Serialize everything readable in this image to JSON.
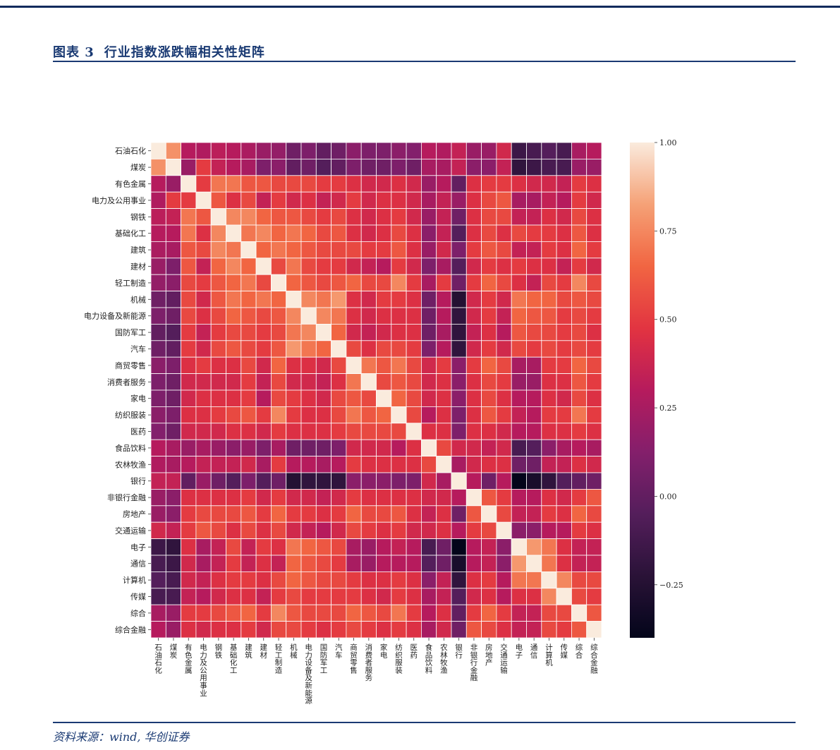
{
  "header": {
    "label": "图表 3",
    "title": "行业指数涨跌幅相关性矩阵"
  },
  "footer": {
    "source": "资料来源：wind, 华创证券"
  },
  "colors": {
    "accent": "#1a3a73",
    "top_bar": "#0f2a5c"
  },
  "chart_data": {
    "type": "heatmap",
    "title": "",
    "labels": [
      "石油石化",
      "煤炭",
      "有色金属",
      "电力及公用事业",
      "钢铁",
      "基础化工",
      "建筑",
      "建材",
      "轻工制造",
      "机械",
      "电力设备及新能源",
      "国防军工",
      "汽车",
      "商贸零售",
      "消费者服务",
      "家电",
      "纺织服装",
      "医药",
      "食品饮料",
      "农林牧渔",
      "银行",
      "非银行金融",
      "房地产",
      "交通运输",
      "电子",
      "通信",
      "计算机",
      "传媒",
      "综合",
      "综合金融"
    ],
    "colorbar": {
      "min": -0.4,
      "max": 1.0,
      "ticks": [
        -0.25,
        0.0,
        0.25,
        0.5,
        0.75,
        1.0
      ],
      "tick_labels": [
        "−0.25",
        "0.00",
        "0.25",
        "0.50",
        "0.75",
        "1.00"
      ],
      "colormap": "rocket"
    },
    "matrix": [
      [
        1.0,
        0.78,
        0.3,
        0.28,
        0.32,
        0.3,
        0.26,
        0.2,
        0.18,
        0.05,
        0.1,
        0.0,
        0.05,
        0.15,
        0.1,
        0.1,
        0.15,
        0.12,
        0.3,
        0.28,
        0.35,
        0.2,
        0.2,
        0.4,
        -0.15,
        -0.1,
        -0.05,
        -0.1,
        0.25,
        0.3
      ],
      [
        0.78,
        1.0,
        0.2,
        0.5,
        0.35,
        0.3,
        0.25,
        0.1,
        0.15,
        0.0,
        0.05,
        -0.05,
        0.0,
        0.1,
        0.05,
        0.05,
        0.1,
        0.05,
        0.25,
        0.25,
        0.35,
        0.15,
        0.15,
        0.35,
        -0.2,
        -0.15,
        -0.1,
        -0.1,
        0.2,
        0.2
      ],
      [
        0.3,
        0.2,
        1.0,
        0.5,
        0.7,
        0.7,
        0.6,
        0.6,
        0.55,
        0.55,
        0.55,
        0.5,
        0.5,
        0.45,
        0.4,
        0.4,
        0.45,
        0.4,
        0.2,
        0.3,
        0.0,
        0.45,
        0.5,
        0.5,
        0.45,
        0.4,
        0.4,
        0.35,
        0.5,
        0.45
      ],
      [
        0.28,
        0.5,
        0.5,
        1.0,
        0.6,
        0.45,
        0.55,
        0.35,
        0.5,
        0.4,
        0.45,
        0.35,
        0.4,
        0.5,
        0.4,
        0.45,
        0.45,
        0.4,
        0.25,
        0.35,
        0.2,
        0.45,
        0.55,
        0.6,
        0.25,
        0.25,
        0.35,
        0.3,
        0.5,
        0.4
      ],
      [
        0.32,
        0.35,
        0.7,
        0.6,
        1.0,
        0.75,
        0.75,
        0.65,
        0.6,
        0.6,
        0.55,
        0.5,
        0.55,
        0.45,
        0.4,
        0.45,
        0.5,
        0.4,
        0.2,
        0.35,
        0.05,
        0.45,
        0.55,
        0.55,
        0.35,
        0.35,
        0.45,
        0.4,
        0.55,
        0.45
      ],
      [
        0.3,
        0.3,
        0.7,
        0.45,
        0.75,
        1.0,
        0.7,
        0.75,
        0.65,
        0.7,
        0.65,
        0.55,
        0.6,
        0.45,
        0.4,
        0.45,
        0.55,
        0.45,
        0.15,
        0.35,
        -0.05,
        0.45,
        0.55,
        0.45,
        0.55,
        0.5,
        0.5,
        0.45,
        0.6,
        0.45
      ],
      [
        0.26,
        0.25,
        0.6,
        0.55,
        0.75,
        0.7,
        1.0,
        0.65,
        0.7,
        0.65,
        0.6,
        0.55,
        0.55,
        0.55,
        0.5,
        0.5,
        0.6,
        0.45,
        0.2,
        0.4,
        0.1,
        0.5,
        0.6,
        0.55,
        0.35,
        0.35,
        0.5,
        0.45,
        0.65,
        0.5
      ],
      [
        0.2,
        0.1,
        0.6,
        0.35,
        0.65,
        0.75,
        0.65,
        1.0,
        0.55,
        0.7,
        0.55,
        0.5,
        0.5,
        0.4,
        0.35,
        0.3,
        0.5,
        0.4,
        0.1,
        0.25,
        -0.05,
        0.4,
        0.5,
        0.45,
        0.5,
        0.45,
        0.45,
        0.35,
        0.5,
        0.4
      ],
      [
        0.18,
        0.15,
        0.55,
        0.5,
        0.6,
        0.65,
        0.7,
        0.55,
        1.0,
        0.65,
        0.6,
        0.55,
        0.6,
        0.65,
        0.55,
        0.55,
        0.75,
        0.5,
        0.25,
        0.5,
        0.05,
        0.5,
        0.65,
        0.55,
        0.45,
        0.35,
        0.55,
        0.5,
        0.75,
        0.55
      ],
      [
        0.05,
        0.0,
        0.55,
        0.4,
        0.6,
        0.7,
        0.65,
        0.7,
        0.65,
        1.0,
        0.75,
        0.7,
        0.8,
        0.45,
        0.4,
        0.5,
        0.5,
        0.45,
        0.05,
        0.3,
        -0.25,
        0.4,
        0.5,
        0.4,
        0.7,
        0.65,
        0.65,
        0.55,
        0.6,
        0.55
      ],
      [
        0.1,
        0.05,
        0.55,
        0.45,
        0.55,
        0.65,
        0.6,
        0.55,
        0.6,
        0.75,
        1.0,
        0.75,
        0.7,
        0.45,
        0.4,
        0.45,
        0.45,
        0.45,
        0.05,
        0.3,
        -0.2,
        0.4,
        0.5,
        0.35,
        0.65,
        0.6,
        0.6,
        0.5,
        0.55,
        0.5
      ],
      [
        0.0,
        -0.05,
        0.5,
        0.35,
        0.5,
        0.55,
        0.55,
        0.5,
        0.55,
        0.7,
        0.75,
        1.0,
        0.65,
        0.4,
        0.35,
        0.4,
        0.45,
        0.45,
        0.05,
        0.25,
        -0.2,
        0.35,
        0.45,
        0.3,
        0.6,
        0.55,
        0.55,
        0.5,
        0.55,
        0.45
      ],
      [
        0.05,
        0.0,
        0.5,
        0.4,
        0.55,
        0.6,
        0.55,
        0.5,
        0.6,
        0.8,
        0.7,
        0.65,
        1.0,
        0.55,
        0.45,
        0.55,
        0.55,
        0.5,
        0.1,
        0.3,
        -0.2,
        0.4,
        0.5,
        0.4,
        0.55,
        0.5,
        0.55,
        0.5,
        0.55,
        0.5
      ],
      [
        0.15,
        0.1,
        0.45,
        0.5,
        0.45,
        0.45,
        0.55,
        0.4,
        0.65,
        0.45,
        0.45,
        0.4,
        0.55,
        1.0,
        0.7,
        0.6,
        0.7,
        0.55,
        0.4,
        0.5,
        0.15,
        0.5,
        0.65,
        0.55,
        0.25,
        0.25,
        0.5,
        0.5,
        0.65,
        0.55
      ],
      [
        0.1,
        0.05,
        0.4,
        0.4,
        0.4,
        0.4,
        0.5,
        0.35,
        0.55,
        0.4,
        0.4,
        0.35,
        0.45,
        0.7,
        1.0,
        0.55,
        0.6,
        0.55,
        0.4,
        0.45,
        0.15,
        0.45,
        0.55,
        0.5,
        0.2,
        0.2,
        0.45,
        0.45,
        0.6,
        0.5
      ],
      [
        0.1,
        0.05,
        0.4,
        0.45,
        0.45,
        0.45,
        0.5,
        0.3,
        0.55,
        0.5,
        0.45,
        0.4,
        0.55,
        0.6,
        0.55,
        1.0,
        0.65,
        0.55,
        0.4,
        0.45,
        0.15,
        0.45,
        0.55,
        0.45,
        0.3,
        0.3,
        0.45,
        0.4,
        0.55,
        0.45
      ],
      [
        0.15,
        0.1,
        0.45,
        0.45,
        0.5,
        0.55,
        0.6,
        0.5,
        0.75,
        0.5,
        0.45,
        0.45,
        0.55,
        0.7,
        0.6,
        0.65,
        1.0,
        0.55,
        0.3,
        0.45,
        0.1,
        0.45,
        0.6,
        0.5,
        0.35,
        0.3,
        0.5,
        0.5,
        0.7,
        0.5
      ],
      [
        0.12,
        0.05,
        0.4,
        0.4,
        0.4,
        0.45,
        0.45,
        0.4,
        0.5,
        0.45,
        0.45,
        0.45,
        0.5,
        0.55,
        0.55,
        0.55,
        0.55,
        1.0,
        0.45,
        0.45,
        0.1,
        0.45,
        0.45,
        0.4,
        0.3,
        0.3,
        0.45,
        0.45,
        0.5,
        0.45
      ],
      [
        0.3,
        0.25,
        0.2,
        0.25,
        0.2,
        0.15,
        0.2,
        0.1,
        0.25,
        0.05,
        0.05,
        0.05,
        0.1,
        0.4,
        0.4,
        0.4,
        0.3,
        0.45,
        1.0,
        0.55,
        0.4,
        0.4,
        0.35,
        0.4,
        -0.1,
        -0.05,
        0.15,
        0.25,
        0.3,
        0.25
      ],
      [
        0.28,
        0.25,
        0.3,
        0.35,
        0.35,
        0.35,
        0.4,
        0.25,
        0.5,
        0.3,
        0.3,
        0.25,
        0.3,
        0.5,
        0.45,
        0.45,
        0.45,
        0.45,
        0.55,
        1.0,
        0.25,
        0.4,
        0.45,
        0.45,
        0.05,
        0.05,
        0.35,
        0.35,
        0.45,
        0.4
      ],
      [
        0.35,
        0.35,
        0.0,
        0.2,
        0.05,
        -0.05,
        0.1,
        -0.05,
        0.05,
        -0.25,
        -0.2,
        -0.2,
        -0.2,
        0.15,
        0.15,
        0.15,
        0.1,
        0.1,
        0.4,
        0.25,
        1.0,
        0.3,
        0.05,
        0.3,
        -0.4,
        -0.3,
        -0.2,
        -0.05,
        0.0,
        0.05
      ],
      [
        0.2,
        0.15,
        0.45,
        0.45,
        0.45,
        0.45,
        0.5,
        0.4,
        0.5,
        0.4,
        0.4,
        0.35,
        0.4,
        0.5,
        0.45,
        0.45,
        0.45,
        0.45,
        0.4,
        0.4,
        0.3,
        1.0,
        0.6,
        0.5,
        0.3,
        0.3,
        0.45,
        0.4,
        0.5,
        0.6
      ],
      [
        0.2,
        0.15,
        0.5,
        0.55,
        0.55,
        0.55,
        0.6,
        0.5,
        0.65,
        0.5,
        0.5,
        0.45,
        0.5,
        0.65,
        0.55,
        0.55,
        0.6,
        0.45,
        0.35,
        0.45,
        0.05,
        0.6,
        1.0,
        0.55,
        0.35,
        0.35,
        0.5,
        0.45,
        0.65,
        0.55
      ],
      [
        0.4,
        0.35,
        0.5,
        0.6,
        0.55,
        0.45,
        0.55,
        0.45,
        0.55,
        0.4,
        0.35,
        0.3,
        0.4,
        0.55,
        0.5,
        0.45,
        0.5,
        0.4,
        0.4,
        0.45,
        0.3,
        0.5,
        0.55,
        1.0,
        0.15,
        0.15,
        0.3,
        0.3,
        0.5,
        0.45
      ],
      [
        -0.15,
        -0.2,
        0.45,
        0.25,
        0.35,
        0.55,
        0.35,
        0.5,
        0.45,
        0.7,
        0.65,
        0.6,
        0.55,
        0.25,
        0.2,
        0.3,
        0.35,
        0.3,
        -0.1,
        0.05,
        -0.4,
        0.3,
        0.35,
        0.15,
        1.0,
        0.8,
        0.7,
        0.45,
        0.35,
        0.35
      ],
      [
        -0.1,
        -0.15,
        0.4,
        0.25,
        0.35,
        0.5,
        0.35,
        0.45,
        0.35,
        0.65,
        0.6,
        0.55,
        0.5,
        0.25,
        0.2,
        0.3,
        0.3,
        0.3,
        -0.05,
        0.05,
        -0.3,
        0.3,
        0.35,
        0.15,
        0.8,
        1.0,
        0.7,
        0.45,
        0.35,
        0.35
      ],
      [
        -0.05,
        -0.1,
        0.4,
        0.35,
        0.45,
        0.5,
        0.5,
        0.45,
        0.55,
        0.65,
        0.6,
        0.55,
        0.55,
        0.5,
        0.45,
        0.45,
        0.5,
        0.45,
        0.15,
        0.35,
        -0.2,
        0.45,
        0.5,
        0.3,
        0.7,
        0.7,
        1.0,
        0.75,
        0.55,
        0.55
      ],
      [
        -0.1,
        -0.1,
        0.35,
        0.3,
        0.4,
        0.45,
        0.45,
        0.35,
        0.5,
        0.55,
        0.5,
        0.5,
        0.5,
        0.5,
        0.45,
        0.4,
        0.5,
        0.45,
        0.25,
        0.35,
        -0.05,
        0.4,
        0.45,
        0.3,
        0.45,
        0.45,
        0.75,
        1.0,
        0.55,
        0.5
      ],
      [
        0.25,
        0.2,
        0.5,
        0.5,
        0.55,
        0.6,
        0.65,
        0.5,
        0.75,
        0.6,
        0.55,
        0.55,
        0.55,
        0.65,
        0.6,
        0.55,
        0.7,
        0.5,
        0.3,
        0.45,
        0.0,
        0.5,
        0.65,
        0.5,
        0.35,
        0.35,
        0.55,
        0.55,
        1.0,
        0.6
      ],
      [
        0.3,
        0.2,
        0.45,
        0.4,
        0.45,
        0.45,
        0.5,
        0.4,
        0.55,
        0.55,
        0.5,
        0.45,
        0.5,
        0.55,
        0.5,
        0.45,
        0.5,
        0.45,
        0.25,
        0.4,
        0.05,
        0.6,
        0.55,
        0.45,
        0.35,
        0.35,
        0.55,
        0.5,
        0.6,
        1.0
      ]
    ]
  }
}
